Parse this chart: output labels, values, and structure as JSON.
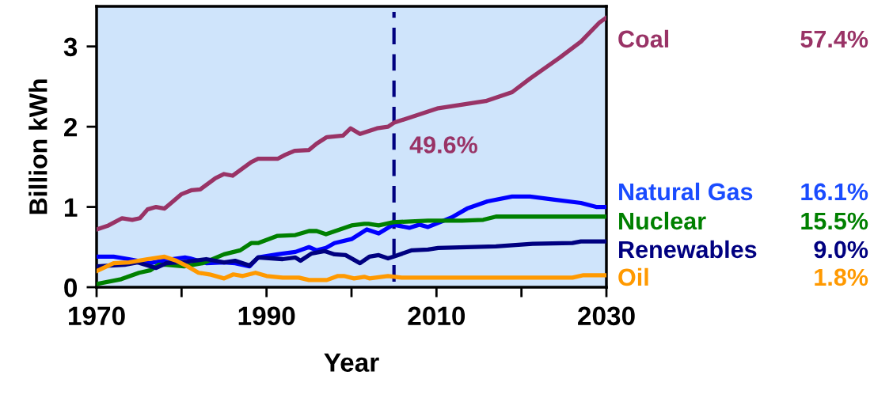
{
  "chart_data": {
    "type": "line",
    "xlabel": "Year",
    "ylabel": "Billion kWh",
    "xlim": [
      1970,
      2030
    ],
    "xticks": [
      1970,
      {
        "value": 1980,
        "label": null
      },
      1990,
      {
        "value": 2000,
        "label": null
      },
      2010,
      {
        "value": 2020,
        "label": null
      },
      2030
    ],
    "ylim": [
      0,
      3.5
    ],
    "yticks": [
      0,
      1,
      2,
      3
    ],
    "grid": false,
    "series": [
      {
        "name": "Coal",
        "color": "#993366",
        "x": [
          1970,
          1971.4,
          1973,
          1974.2,
          1975.1,
          1976,
          1977,
          1978,
          1980,
          1981.2,
          1982.2,
          1984,
          1985,
          1986,
          1988.2,
          1989,
          1991.3,
          1992.2,
          1993.3,
          1995,
          1995.9,
          1997.1,
          1999,
          1999.9,
          2001,
          2003,
          2004.3,
          2005,
          2010.2,
          2015.8,
          2018.9,
          2021,
          2024.5,
          2027,
          2029.2,
          2030
        ],
        "values": [
          0.72,
          0.77,
          0.86,
          0.84,
          0.86,
          0.97,
          1.0,
          0.98,
          1.16,
          1.21,
          1.22,
          1.36,
          1.41,
          1.39,
          1.56,
          1.6,
          1.6,
          1.65,
          1.7,
          1.71,
          1.79,
          1.87,
          1.89,
          1.98,
          1.91,
          1.98,
          2.0,
          2.05,
          2.23,
          2.32,
          2.43,
          2.6,
          2.86,
          3.06,
          3.3,
          3.36
        ]
      },
      {
        "name": "Natural Gas",
        "color": "#0000ff",
        "x": [
          1970,
          1972,
          1973.8,
          1976.3,
          1978.2,
          1980.4,
          1981,
          1982.9,
          1985,
          1986.3,
          1988,
          1989,
          1991.3,
          1993.4,
          1995,
          1995.9,
          1997,
          1998,
          2000,
          2001.8,
          2003.2,
          2004.9,
          2006.8,
          2008,
          2009,
          2011.8,
          2013.6,
          2016,
          2018.9,
          2021,
          2023.9,
          2027,
          2028.8,
          2030
        ],
        "values": [
          0.38,
          0.38,
          0.35,
          0.3,
          0.34,
          0.37,
          0.36,
          0.3,
          0.31,
          0.3,
          0.26,
          0.37,
          0.41,
          0.44,
          0.5,
          0.46,
          0.49,
          0.55,
          0.6,
          0.72,
          0.67,
          0.78,
          0.74,
          0.78,
          0.75,
          0.87,
          0.98,
          1.07,
          1.13,
          1.13,
          1.09,
          1.05,
          1.0,
          1.0
        ]
      },
      {
        "name": "Nuclear",
        "color": "#008000",
        "x": [
          1970,
          1972.9,
          1975,
          1976.3,
          1977.3,
          1978.2,
          1980.3,
          1982.5,
          1985,
          1986.9,
          1988.2,
          1989,
          1991.3,
          1993.4,
          1995,
          1995.9,
          1997,
          2000,
          2001.5,
          2002,
          2003.2,
          2004.9,
          2009,
          2013,
          2015.5,
          2017,
          2030
        ],
        "values": [
          0.04,
          0.1,
          0.18,
          0.21,
          0.28,
          0.28,
          0.26,
          0.3,
          0.41,
          0.46,
          0.55,
          0.55,
          0.64,
          0.65,
          0.7,
          0.7,
          0.66,
          0.77,
          0.79,
          0.79,
          0.77,
          0.81,
          0.83,
          0.83,
          0.84,
          0.88,
          0.88
        ]
      },
      {
        "name": "Renewables",
        "color": "#000080",
        "x": [
          1970,
          1973.3,
          1974.8,
          1977,
          1978.2,
          1980.7,
          1982.9,
          1985,
          1986.3,
          1988,
          1989,
          1991.9,
          1993.4,
          1994,
          1995.3,
          1996.8,
          1998,
          1999.3,
          2001,
          2002.1,
          2003.2,
          2004.3,
          2004.9,
          2007.1,
          2009,
          2010.2,
          2017,
          2021.3,
          2026,
          2027,
          2030
        ],
        "values": [
          0.26,
          0.28,
          0.31,
          0.24,
          0.3,
          0.32,
          0.35,
          0.31,
          0.33,
          0.27,
          0.37,
          0.35,
          0.37,
          0.33,
          0.42,
          0.45,
          0.41,
          0.4,
          0.3,
          0.38,
          0.4,
          0.36,
          0.38,
          0.46,
          0.47,
          0.49,
          0.51,
          0.54,
          0.55,
          0.57,
          0.57
        ]
      },
      {
        "name": "Oil",
        "color": "#ff9900",
        "x": [
          1970,
          1972,
          1973.8,
          1976,
          1978,
          1979.4,
          1980.7,
          1982,
          1983.3,
          1985,
          1986.1,
          1987.2,
          1988.7,
          1990,
          1991.9,
          1993.8,
          1995,
          1997.1,
          1998.4,
          1999.1,
          2000.3,
          2001.5,
          2002.1,
          2004.3,
          2005.9,
          2026,
          2027.3,
          2030
        ],
        "values": [
          0.2,
          0.3,
          0.31,
          0.35,
          0.38,
          0.33,
          0.26,
          0.18,
          0.16,
          0.11,
          0.16,
          0.14,
          0.18,
          0.14,
          0.12,
          0.12,
          0.09,
          0.09,
          0.14,
          0.14,
          0.11,
          0.13,
          0.11,
          0.14,
          0.12,
          0.12,
          0.15,
          0.15
        ]
      }
    ],
    "ref_lines": [
      {
        "axis": "x",
        "value": 2005,
        "color": "#000080",
        "line_style": "dashed"
      }
    ],
    "annotations": [
      {
        "text": "49.6%",
        "x": 2005,
        "y": 2.05
      },
      "57.4%",
      "16.1%",
      "15.5%",
      "9.0%",
      "1.8%"
    ]
  }
}
